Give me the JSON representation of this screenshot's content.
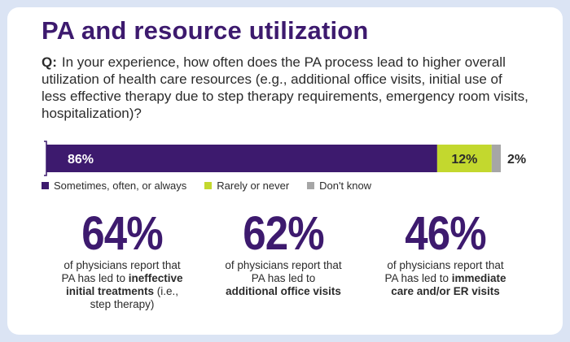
{
  "title": "PA and resource utilization",
  "question": {
    "label": "Q:",
    "text": "In your experience, how often does the PA process lead to higher overall utilization of health care resources (e.g., additional office visits, initial use of less effective therapy due to step therapy requirements, emergency room visits, hospitalization)?"
  },
  "chart_data": {
    "type": "bar",
    "orientation": "horizontal-stacked",
    "series": [
      {
        "name": "Sometimes, often, or always",
        "value": 86,
        "label": "86%",
        "color": "#3d1a6e"
      },
      {
        "name": "Rarely or never",
        "value": 12,
        "label": "12%",
        "color": "#c3d82e"
      },
      {
        "name": "Don't know",
        "value": 2,
        "label": "2%",
        "color": "#a6a6a6"
      }
    ],
    "legend_position": "bottom-left",
    "xlim": [
      0,
      100
    ]
  },
  "stats": [
    {
      "value": "64%",
      "desc_pre": "of physicians report that PA has led to ",
      "desc_bold": "ineffective initial treatments",
      "desc_post": " (i.e., step therapy)"
    },
    {
      "value": "62%",
      "desc_pre": "of physicians report that PA has led to ",
      "desc_bold": "additional office visits",
      "desc_post": ""
    },
    {
      "value": "46%",
      "desc_pre": "of physicians report that PA has led to ",
      "desc_bold": "immediate care and/or ER visits",
      "desc_post": ""
    }
  ]
}
